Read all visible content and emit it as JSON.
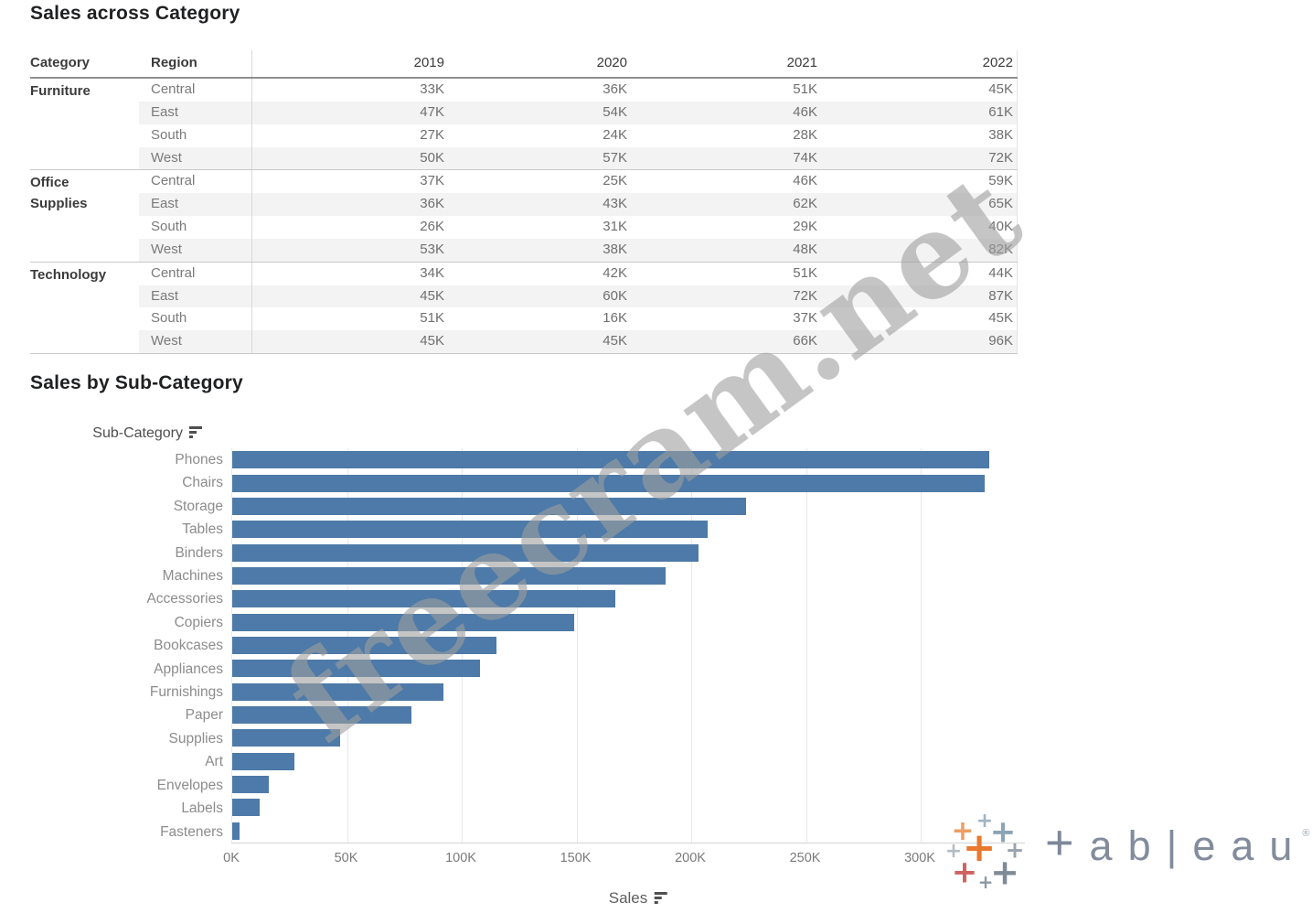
{
  "table_section": {
    "title": "Sales across Category"
  },
  "chart_section": {
    "title": "Sales by Sub-Category",
    "row_axis_label": "Sub-Category",
    "x_axis_label": "Sales",
    "icons": {
      "row_sort": "sort-descending-icon",
      "axis_sort": "sort-descending-icon"
    }
  },
  "chart_data": [
    {
      "type": "table",
      "title": "Sales across Category",
      "row_dims": [
        "Category",
        "Region"
      ],
      "col_dim_values": [
        "2019",
        "2020",
        "2021",
        "2022"
      ],
      "groups": [
        {
          "category": "Furniture",
          "rows": [
            {
              "region": "Central",
              "values": [
                "33K",
                "36K",
                "51K",
                "45K"
              ]
            },
            {
              "region": "East",
              "values": [
                "47K",
                "54K",
                "46K",
                "61K"
              ]
            },
            {
              "region": "South",
              "values": [
                "27K",
                "24K",
                "28K",
                "38K"
              ]
            },
            {
              "region": "West",
              "values": [
                "50K",
                "57K",
                "74K",
                "72K"
              ]
            }
          ]
        },
        {
          "category": "Office Supplies",
          "rows": [
            {
              "region": "Central",
              "values": [
                "37K",
                "25K",
                "46K",
                "59K"
              ]
            },
            {
              "region": "East",
              "values": [
                "36K",
                "43K",
                "62K",
                "65K"
              ]
            },
            {
              "region": "South",
              "values": [
                "26K",
                "31K",
                "29K",
                "40K"
              ]
            },
            {
              "region": "West",
              "values": [
                "53K",
                "38K",
                "48K",
                "82K"
              ]
            }
          ]
        },
        {
          "category": "Technology",
          "rows": [
            {
              "region": "Central",
              "values": [
                "34K",
                "42K",
                "51K",
                "44K"
              ]
            },
            {
              "region": "East",
              "values": [
                "45K",
                "60K",
                "72K",
                "87K"
              ]
            },
            {
              "region": "South",
              "values": [
                "51K",
                "16K",
                "37K",
                "45K"
              ]
            },
            {
              "region": "West",
              "values": [
                "45K",
                "45K",
                "66K",
                "96K"
              ]
            }
          ]
        }
      ]
    },
    {
      "type": "bar",
      "orientation": "horizontal",
      "title": "Sales by Sub-Category",
      "xlabel": "Sales",
      "ylabel": "Sub-Category",
      "sort": "descending by value",
      "categories": [
        "Phones",
        "Chairs",
        "Storage",
        "Tables",
        "Binders",
        "Machines",
        "Accessories",
        "Copiers",
        "Bookcases",
        "Appliances",
        "Furnishings",
        "Paper",
        "Supplies",
        "Art",
        "Envelopes",
        "Labels",
        "Fasteners"
      ],
      "values_k": [
        330,
        328,
        224,
        207,
        203,
        189,
        167,
        149,
        115,
        108,
        92,
        78,
        47,
        27,
        16,
        12,
        3
      ],
      "unit": "K",
      "xlim_k": [
        0,
        345
      ],
      "x_tick_values_k": [
        0,
        50,
        100,
        150,
        200,
        250,
        300
      ],
      "x_tick_labels": [
        "0K",
        "50K",
        "100K",
        "150K",
        "200K",
        "250K",
        "300K"
      ],
      "gridlines": true,
      "legend": "none",
      "bar_color": "#4d7aa8"
    }
  ],
  "watermark": {
    "text": "freecram.net",
    "color": "rgba(158,158,158,0.6)"
  },
  "tableau_logo": {
    "wordmark_plus": "+",
    "wordmark_letters": [
      "a",
      "b",
      "|",
      "e",
      "a",
      "u"
    ],
    "registered_symbol": "®",
    "wordmark_color": "#828c9d",
    "cluster_colors": [
      "#EE9E64",
      "#9FB3C2",
      "#8BA4B4",
      "#B4BCC2",
      "#E8792F",
      "#9AA3AD",
      "#CE625E",
      "#8D98A2",
      "#7E8A94"
    ]
  },
  "colors": {
    "stripe": "#f3f3f3",
    "header_line": "#8f8f8f",
    "group_line": "#c9c9c9",
    "column_divider": "#d8d8d8",
    "gridline": "#e8e8e8",
    "title_text": "#1f2022",
    "header_text": "#3b3b3b",
    "muted_text": "#7a7a7a",
    "bar": "#4d7aa8"
  }
}
